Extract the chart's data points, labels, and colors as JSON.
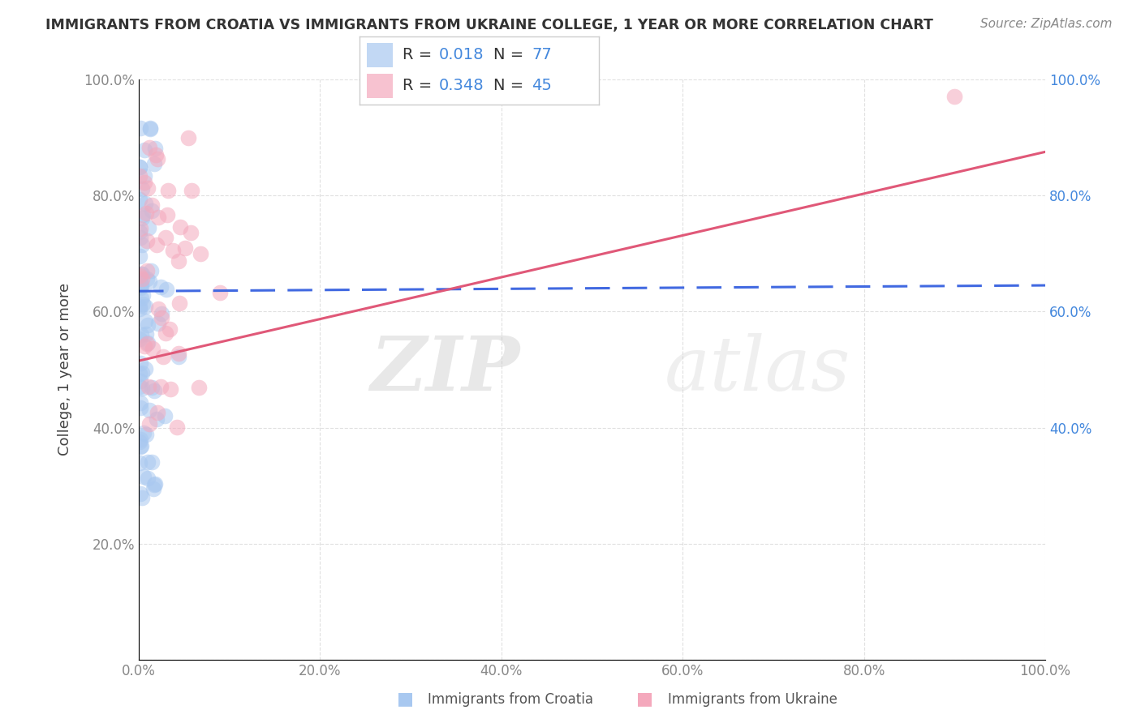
{
  "title": "IMMIGRANTS FROM CROATIA VS IMMIGRANTS FROM UKRAINE COLLEGE, 1 YEAR OR MORE CORRELATION CHART",
  "source_text": "Source: ZipAtlas.com",
  "ylabel": "College, 1 year or more",
  "watermark_zip": "ZIP",
  "watermark_atlas": "atlas",
  "blue_R": 0.018,
  "blue_N": 77,
  "pink_R": 0.348,
  "pink_N": 45,
  "blue_label": "Immigrants from Croatia",
  "pink_label": "Immigrants from Ukraine",
  "blue_color": "#a8c8f0",
  "pink_color": "#f4a8bc",
  "blue_line_color": "#4169e1",
  "pink_line_color": "#e05878",
  "grid_color": "#dddddd",
  "background_color": "#ffffff",
  "title_color": "#333333",
  "right_tick_color": "#4488dd",
  "tick_color": "#888888",
  "source_color": "#888888",
  "legend_number_color": "#4488dd",
  "xticks": [
    0.0,
    0.2,
    0.4,
    0.6,
    0.8,
    1.0
  ],
  "xtick_labels": [
    "0.0%",
    "20.0%",
    "40.0%",
    "60.0%",
    "80.0%",
    "100.0%"
  ],
  "yticks": [
    0.0,
    0.2,
    0.4,
    0.6,
    0.8,
    1.0
  ],
  "ytick_labels": [
    "",
    "20.0%",
    "40.0%",
    "60.0%",
    "80.0%",
    "100.0%"
  ],
  "right_yticks": [
    0.4,
    0.6,
    0.8,
    1.0
  ],
  "right_ytick_labels": [
    "40.0%",
    "60.0%",
    "80.0%",
    "100.0%"
  ],
  "blue_trend_x": [
    0.0,
    1.0
  ],
  "blue_trend_y": [
    0.635,
    0.645
  ],
  "pink_trend_x": [
    0.0,
    1.0
  ],
  "pink_trend_y": [
    0.515,
    0.875
  ]
}
